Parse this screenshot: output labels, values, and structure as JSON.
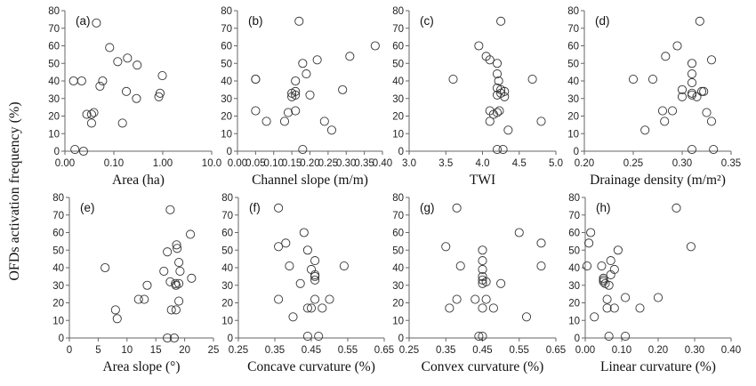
{
  "ylabel": "OFDs activation frequency (%)",
  "chart_data": [
    {
      "type": "scatter",
      "panel": "(a)",
      "xlabel": "Area (ha)",
      "xscale": "log",
      "xlim": [
        0.01,
        10
      ],
      "xticks": [
        0.01,
        0.1,
        1,
        10
      ],
      "xtick_labels": [
        "0.00",
        "0.10",
        "1.00",
        "10.0"
      ],
      "ylim": [
        0,
        80
      ],
      "yticks": [
        0,
        10,
        20,
        30,
        40,
        50,
        60,
        70,
        80
      ],
      "x": [
        0.044,
        0.082,
        0.19,
        0.18,
        0.022,
        0.059,
        0.052,
        0.039,
        0.015,
        0.016,
        0.024,
        0.035,
        0.028,
        0.035,
        0.12,
        0.88,
        0.15,
        0.3,
        0.29,
        0.98,
        0.83
      ],
      "y": [
        73,
        59,
        53,
        34,
        40,
        40,
        37,
        22,
        40,
        1,
        0,
        21,
        21,
        16,
        51,
        33,
        16,
        49,
        30,
        43,
        31
      ]
    },
    {
      "type": "scatter",
      "panel": "(b)",
      "xlabel": "Channel slope (m/m)",
      "xlim": [
        0,
        0.4
      ],
      "xticks": [
        0,
        0.05,
        0.1,
        0.15,
        0.2,
        0.25,
        0.3,
        0.35,
        0.4
      ],
      "xtick_labels": [
        "0.00",
        "0.05",
        "0.10",
        "0.15",
        "0.20",
        "0.25",
        "0.30",
        "0.35",
        "0.40"
      ],
      "ylim": [
        0,
        80
      ],
      "yticks": [
        0,
        10,
        20,
        30,
        40,
        50,
        60,
        70,
        80
      ],
      "x": [
        0.17,
        0.38,
        0.31,
        0.22,
        0.18,
        0.29,
        0.05,
        0.05,
        0.19,
        0.16,
        0.16,
        0.15,
        0.16,
        0.2,
        0.15,
        0.16,
        0.05,
        0.14,
        0.08,
        0.13,
        0.26,
        0.24,
        0.18
      ],
      "y": [
        74,
        60,
        54,
        52,
        50,
        35,
        41,
        41,
        44,
        40,
        34,
        33,
        32,
        32,
        31,
        23,
        23,
        22,
        17,
        17,
        12,
        17,
        1
      ]
    },
    {
      "type": "scatter",
      "panel": "(c)",
      "xlabel": "TWI",
      "xlim": [
        3.0,
        5.0
      ],
      "xticks": [
        3.0,
        3.5,
        4.0,
        4.5,
        5.0
      ],
      "xtick_labels": [
        "3.0",
        "3.5",
        "4.0",
        "4.5",
        "5.0"
      ],
      "ylim": [
        0,
        80
      ],
      "yticks": [
        0,
        10,
        20,
        30,
        40,
        50,
        60,
        70,
        80
      ],
      "x": [
        4.25,
        3.95,
        4.05,
        4.1,
        4.2,
        3.6,
        4.2,
        4.68,
        4.22,
        4.2,
        4.25,
        4.3,
        4.25,
        4.2,
        4.3,
        4.1,
        4.2,
        4.23,
        4.15,
        4.1,
        4.8,
        4.35,
        4.2,
        4.28
      ],
      "y": [
        74,
        60,
        54,
        52,
        50,
        41,
        44,
        41,
        40,
        36,
        35,
        34,
        33,
        32,
        31,
        23,
        22,
        23,
        21,
        17,
        17,
        12,
        1,
        1
      ]
    },
    {
      "type": "scatter",
      "panel": "(d)",
      "xlabel": "Drainage density (m/m²)",
      "xlim": [
        0.2,
        0.35
      ],
      "xticks": [
        0.2,
        0.25,
        0.3,
        0.35
      ],
      "xtick_labels": [
        "0.20",
        "0.25",
        "0.30",
        "0.35"
      ],
      "ylim": [
        0,
        80
      ],
      "yticks": [
        0,
        10,
        20,
        30,
        40,
        50,
        60,
        70,
        80
      ],
      "x": [
        0.318,
        0.295,
        0.283,
        0.31,
        0.33,
        0.25,
        0.27,
        0.31,
        0.31,
        0.32,
        0.3,
        0.31,
        0.3,
        0.31,
        0.322,
        0.28,
        0.29,
        0.325,
        0.282,
        0.33,
        0.262,
        0.31,
        0.332,
        0.315
      ],
      "y": [
        74,
        60,
        54,
        50,
        52,
        41,
        41,
        44,
        39,
        34,
        35,
        32,
        31,
        33,
        34,
        23,
        23,
        22,
        17,
        17,
        12,
        1,
        1,
        31
      ]
    },
    {
      "type": "scatter",
      "panel": "(e)",
      "xlabel": "Area slope (°)",
      "xlim": [
        0,
        25
      ],
      "xticks": [
        0,
        5,
        10,
        15,
        20,
        25
      ],
      "xtick_labels": [
        "0",
        "5",
        "10",
        "15",
        "20",
        "25"
      ],
      "ylim": [
        0,
        80
      ],
      "yticks": [
        0,
        10,
        20,
        30,
        40,
        50,
        60,
        70,
        80
      ],
      "x": [
        17.5,
        21,
        18.6,
        18.7,
        17,
        6.2,
        19,
        19.2,
        16.4,
        21.2,
        17.5,
        18.4,
        19,
        13.5,
        18.5,
        12,
        13,
        19,
        17.7,
        18.5,
        8,
        8.3,
        17,
        18.2
      ],
      "y": [
        73,
        59,
        53,
        51,
        49,
        40,
        43,
        38,
        38,
        34,
        32,
        31,
        31,
        30,
        30,
        22,
        22,
        21,
        16,
        16,
        16,
        11,
        0,
        0
      ]
    },
    {
      "type": "scatter",
      "panel": "(f)",
      "xlabel": "Concave curvature (%)",
      "xlim": [
        0.25,
        0.65
      ],
      "xticks": [
        0.25,
        0.35,
        0.45,
        0.55,
        0.65
      ],
      "xtick_labels": [
        "0.25",
        "0.35",
        "0.45",
        "0.55",
        "0.65"
      ],
      "ylim": [
        0,
        80
      ],
      "yticks": [
        0,
        10,
        20,
        30,
        40,
        50,
        60,
        70,
        80
      ],
      "x": [
        0.36,
        0.43,
        0.38,
        0.44,
        0.36,
        0.39,
        0.46,
        0.54,
        0.45,
        0.46,
        0.42,
        0.46,
        0.46,
        0.36,
        0.46,
        0.5,
        0.44,
        0.45,
        0.48,
        0.4,
        0.44,
        0.47
      ],
      "y": [
        74,
        60,
        54,
        50,
        52,
        41,
        44,
        41,
        39,
        36,
        31,
        35,
        33,
        22,
        22,
        22,
        17,
        17,
        17,
        12,
        1,
        1
      ]
    },
    {
      "type": "scatter",
      "panel": "(g)",
      "xlabel": "Convex curvature (%)",
      "xlim": [
        0.25,
        0.65
      ],
      "xticks": [
        0.25,
        0.35,
        0.45,
        0.55,
        0.65
      ],
      "xtick_labels": [
        "0.25",
        "0.35",
        "0.45",
        "0.55",
        "0.65"
      ],
      "ylim": [
        0,
        80
      ],
      "yticks": [
        0,
        10,
        20,
        30,
        40,
        50,
        60,
        70,
        80
      ],
      "x": [
        0.38,
        0.55,
        0.61,
        0.35,
        0.45,
        0.39,
        0.45,
        0.61,
        0.45,
        0.45,
        0.45,
        0.46,
        0.5,
        0.45,
        0.38,
        0.43,
        0.46,
        0.36,
        0.45,
        0.48,
        0.57,
        0.44,
        0.45
      ],
      "y": [
        74,
        60,
        54,
        52,
        50,
        41,
        44,
        41,
        39,
        35,
        33,
        32,
        31,
        31,
        22,
        22,
        22,
        17,
        17,
        17,
        12,
        1,
        1
      ]
    },
    {
      "type": "scatter",
      "panel": "(h)",
      "xlabel": "Linear curvature (%)",
      "xlim": [
        0,
        0.4
      ],
      "xticks": [
        0,
        0.1,
        0.2,
        0.3,
        0.4
      ],
      "xtick_labels": [
        "0.00",
        "0.10",
        "0.20",
        "0.30",
        "0.40"
      ],
      "ylim": [
        0,
        80
      ],
      "yticks": [
        0,
        10,
        20,
        30,
        40,
        50,
        60,
        70,
        80
      ],
      "x": [
        0.25,
        0.015,
        0.01,
        0.09,
        0.29,
        0.07,
        0.045,
        0.005,
        0.08,
        0.07,
        0.05,
        0.05,
        0.05,
        0.055,
        0.065,
        0.2,
        0.11,
        0.06,
        0.06,
        0.08,
        0.15,
        0.025,
        0.065,
        0.11
      ],
      "y": [
        74,
        60,
        54,
        50,
        52,
        44,
        41,
        41,
        39,
        36,
        34,
        33,
        32,
        31,
        30,
        23,
        23,
        22,
        17,
        17,
        17,
        12,
        1,
        1
      ]
    }
  ]
}
